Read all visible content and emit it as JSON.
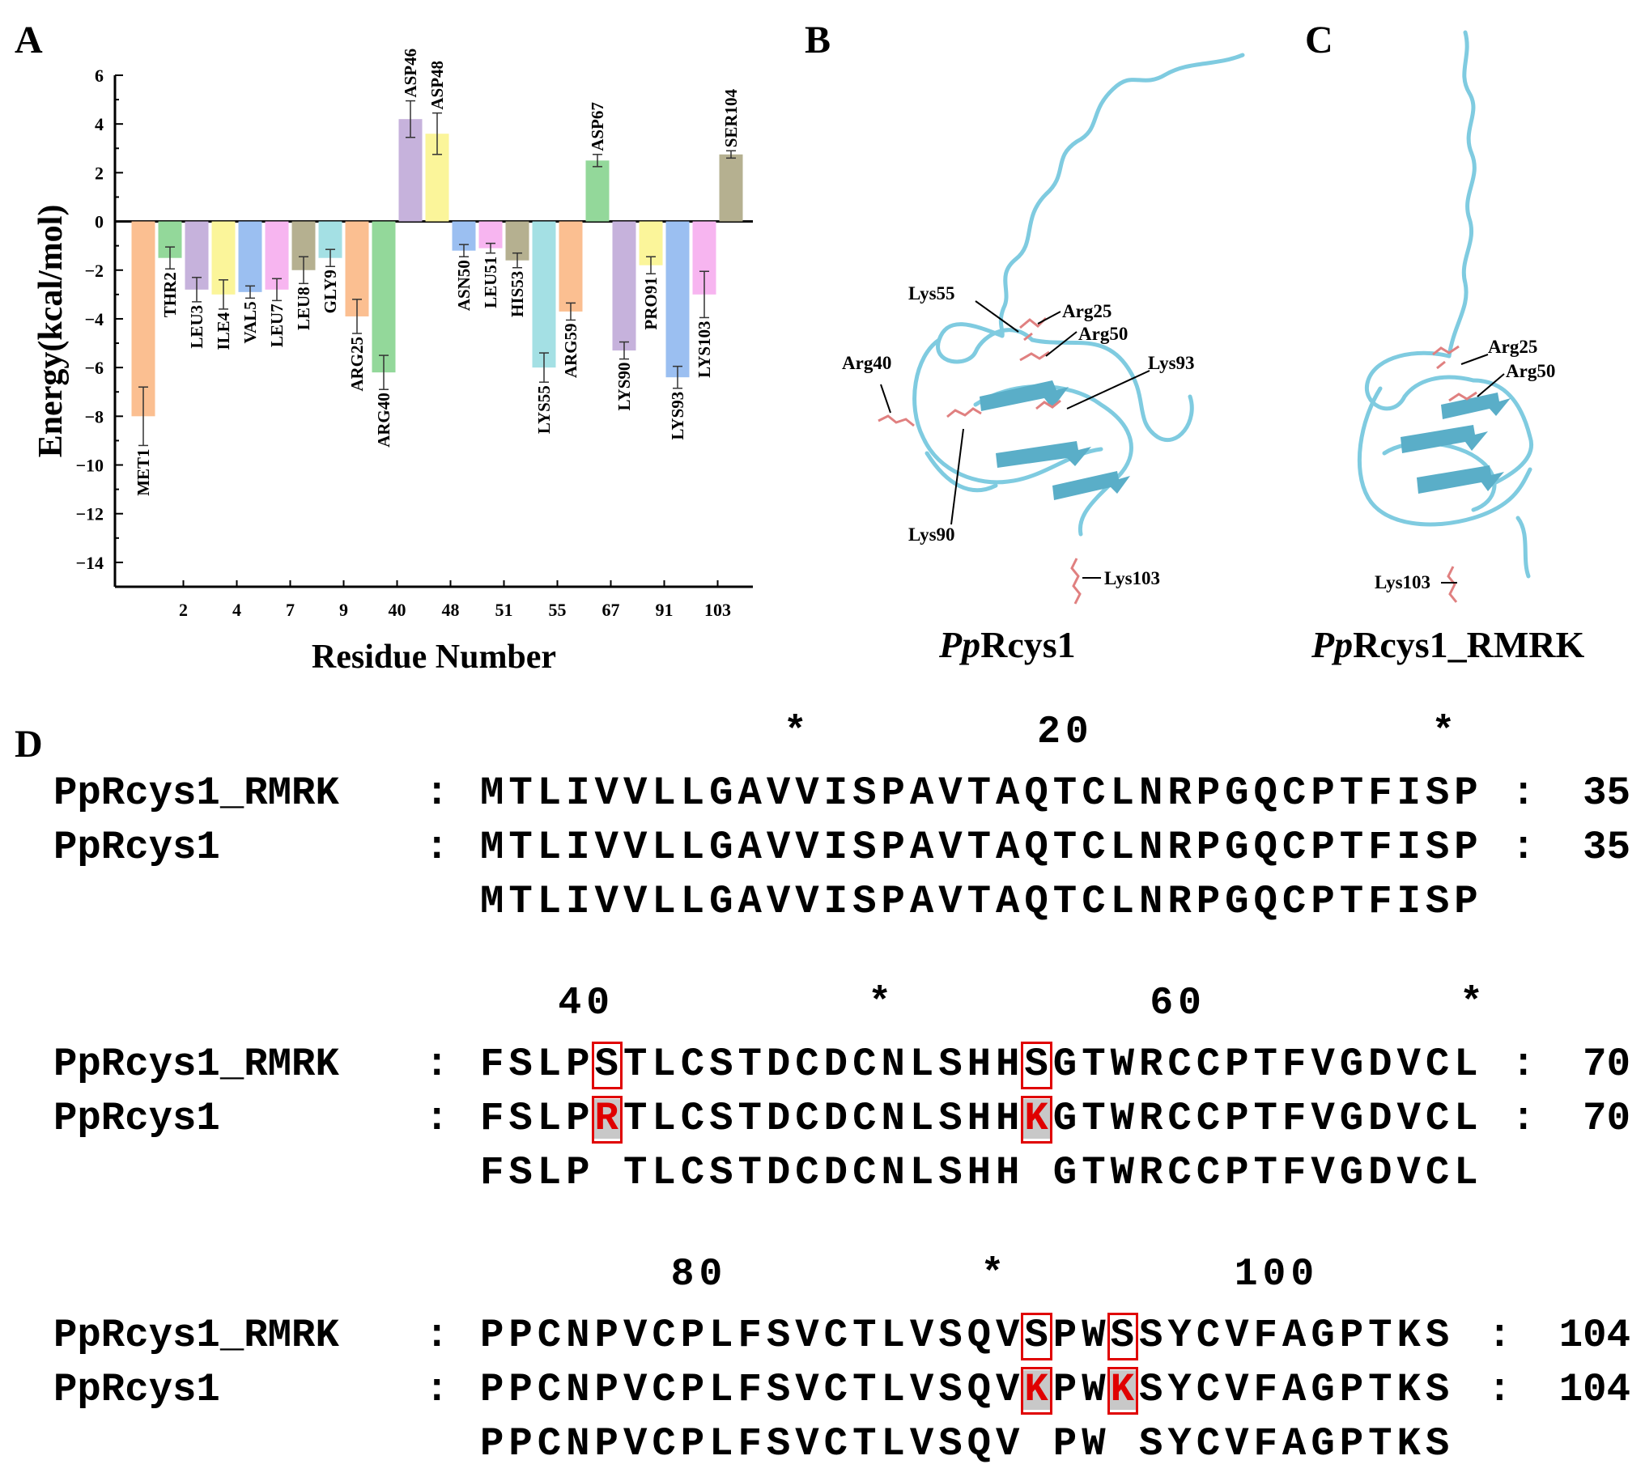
{
  "panels": {
    "a": "A",
    "b": "B",
    "c": "C",
    "d": "D"
  },
  "chart_data": {
    "type": "bar",
    "ylabel": "Energy(kcal/mol)",
    "xlabel": "Residue Number",
    "ylim": [
      -15,
      6
    ],
    "yticks": [
      6,
      4,
      2,
      0,
      -2,
      -4,
      -6,
      -8,
      -10,
      -12,
      -14
    ],
    "xtick_labels": [
      "2",
      "4",
      "7",
      "9",
      "40",
      "48",
      "51",
      "55",
      "67",
      "91",
      "103"
    ],
    "categories": [
      "MET1",
      "THR2",
      "LEU3",
      "ILE4",
      "VAL5",
      "LEU7",
      "LEU8",
      "GLY9",
      "ARG25",
      "ARG40",
      "ASP46",
      "ASP48",
      "ASN50",
      "LEU51",
      "HIS53",
      "LYS55",
      "ARG59",
      "ASP67",
      "LYS90",
      "PRO91",
      "LYS93",
      "LYS103",
      "SER104"
    ],
    "values": [
      -8.0,
      -1.5,
      -2.8,
      -3.0,
      -2.9,
      -2.8,
      -2.0,
      -1.5,
      -3.9,
      -6.2,
      4.2,
      3.6,
      -1.2,
      -1.1,
      -1.6,
      -6.0,
      -3.7,
      2.5,
      -5.3,
      -1.8,
      -6.4,
      -3.0,
      2.75
    ],
    "errors": [
      1.2,
      0.45,
      0.5,
      0.6,
      0.25,
      0.45,
      0.55,
      0.35,
      0.7,
      0.7,
      0.75,
      0.85,
      0.25,
      0.2,
      0.3,
      0.6,
      0.35,
      0.25,
      0.35,
      0.35,
      0.45,
      0.95,
      0.15
    ],
    "colors": [
      "#fbbf91",
      "#93d89a",
      "#c6b2dc",
      "#fbf59a",
      "#9bbff1",
      "#f7b5f0",
      "#b5b090",
      "#a4e0e4",
      "#fbbf91",
      "#93d89a",
      "#c6b2dc",
      "#fbf59a",
      "#9bbff1",
      "#f7b5f0",
      "#b5b090",
      "#a4e0e4",
      "#fbbf91",
      "#93d89a",
      "#c6b2dc",
      "#fbf59a",
      "#9bbff1",
      "#f7b5f0",
      "#b5b090"
    ]
  },
  "structures": {
    "b": {
      "title_italic": "Pp",
      "title_rest": "Rcys1",
      "labels": [
        "Lys55",
        "Arg25",
        "Arg50",
        "Arg40",
        "Lys93",
        "Lys90",
        "Lys103"
      ]
    },
    "c": {
      "title_italic": "Pp",
      "title_rest": "Rcys1_RMRK",
      "labels": [
        "Arg25",
        "Arg50",
        "Lys103"
      ]
    }
  },
  "alignment": {
    "blocks": [
      {
        "ruler": "           *        20            *",
        "rows": [
          {
            "name": "PpRcys1_RMRK",
            "sep": ":",
            "seq": "MTLIVVLLGAVVISPAVTAQTCLNRPGQCPTFISP",
            "end": "35"
          },
          {
            "name": "PpRcys1",
            "sep": ":",
            "seq": "MTLIVVLLGAVVISPAVTAQTCLNRPGQCPTFISP",
            "end": "35"
          },
          {
            "name": "",
            "sep": "",
            "seq": "MTLIVVLLGAVVISPAVTAQTCLNRPGQCPTFISP",
            "end": ""
          }
        ]
      },
      {
        "ruler": "   40         *         60         *",
        "rows": [
          {
            "name": "PpRcys1_RMRK",
            "sep": ":",
            "seq": "FSLPSTLCSTDCDCNLSHHSGTWRCCPTFVGDVCL",
            "end": "70"
          },
          {
            "name": "PpRcys1",
            "sep": ":",
            "seq": "FSLPRTLCSTDCDCNLSHHKGTWRCCPTFVGDVCL",
            "end": "70"
          },
          {
            "name": "",
            "sep": "",
            "seq": "FSLP TLCSTDCDCNLSHH GTWRCCPTFVGDVCL",
            "end": ""
          }
        ]
      },
      {
        "ruler": "       80         *        100",
        "rows": [
          {
            "name": "PpRcys1_RMRK",
            "sep": ":",
            "seq": "PPCNPVCPLFSVCTLVSQVSPWSSYCVFAGPTKS",
            "end": "104"
          },
          {
            "name": "PpRcys1",
            "sep": ":",
            "seq": "PPCNPVCPLFSVCTLVSQVKPWKSYCVFAGPTKS",
            "end": "104"
          },
          {
            "name": "",
            "sep": "",
            "seq": "PPCNPVCPLFSVCTLVSQV PW SYCVFAGPTKS",
            "end": ""
          }
        ]
      }
    ],
    "mutation_columns": [
      [],
      [
        4,
        19
      ],
      [
        19,
        22
      ]
    ]
  }
}
